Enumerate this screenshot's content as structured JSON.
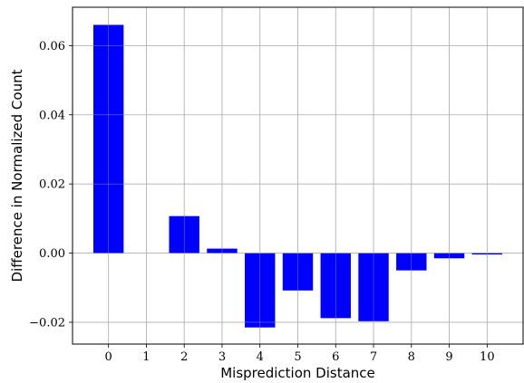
{
  "chart_data": {
    "type": "bar",
    "title": "",
    "xlabel": "Misprediction Distance",
    "ylabel": "Difference in Normalized Count",
    "categories": [
      "0",
      "1",
      "2",
      "3",
      "4",
      "5",
      "6",
      "7",
      "8",
      "9",
      "10"
    ],
    "values": [
      0.066,
      0.0,
      0.0107,
      0.0013,
      -0.0215,
      -0.0108,
      -0.0188,
      -0.0197,
      -0.005,
      -0.0015,
      -0.0004
    ],
    "xlim": [
      -0.95,
      10.95
    ],
    "ylim": [
      -0.0263,
      0.0711
    ],
    "yticks": [
      -0.02,
      0.0,
      0.02,
      0.04,
      0.06
    ],
    "ytick_labels": [
      "−0.02",
      "0.00",
      "0.02",
      "0.04",
      "0.06"
    ],
    "grid": true,
    "bar_color": "#0000ff",
    "grid_color": "#b0b0b0"
  }
}
